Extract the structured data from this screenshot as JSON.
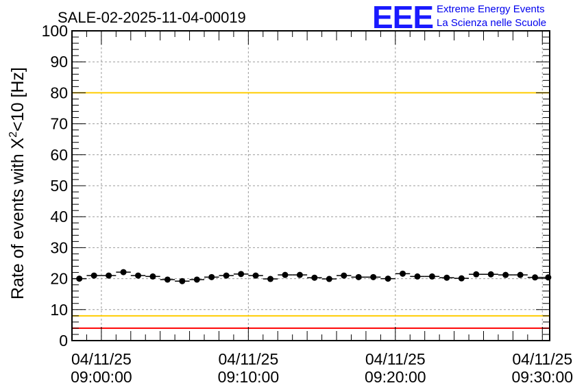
{
  "title": "SALE-02-2025-11-04-00019",
  "logo": {
    "mark": "EEE",
    "line1": "Extreme Energy Events",
    "line2": "La Scienza nelle Scuole",
    "color": "#1a1aff"
  },
  "chart_data": {
    "type": "scatter",
    "title": "SALE-02-2025-11-04-00019",
    "ylabel_prefix": "Rate of events with X",
    "ylabel_sup": "2",
    "ylabel_suffix": "<10 [Hz]",
    "xlabel": "",
    "ylim": [
      0,
      100
    ],
    "xlim_minutes": [
      -2,
      30.5
    ],
    "grid": true,
    "error_bars": "horizontal",
    "y_ticks": [
      "0",
      "10",
      "20",
      "30",
      "40",
      "50",
      "60",
      "70",
      "80",
      "90",
      "100"
    ],
    "x_ticks": [
      {
        "minute": 0,
        "date": "04/11/25",
        "time": "09:00:00"
      },
      {
        "minute": 10,
        "date": "04/11/25",
        "time": "09:10:00"
      },
      {
        "minute": 20,
        "date": "04/11/25",
        "time": "09:20:00"
      },
      {
        "minute": 30,
        "date": "04/11/25",
        "time": "09:30:00"
      }
    ],
    "reference_lines": [
      {
        "y": 100,
        "color": "#ff0000"
      },
      {
        "y": 80,
        "color": "#ffcc00"
      },
      {
        "y": 8,
        "color": "#ffcc00"
      },
      {
        "y": 4,
        "color": "#ff0000"
      }
    ],
    "series": [
      {
        "color": "#000000",
        "bin_width_minutes": 1,
        "x_minutes": [
          -1.5,
          -0.5,
          0.5,
          1.5,
          2.5,
          3.5,
          4.5,
          5.5,
          6.5,
          7.5,
          8.5,
          9.5,
          10.5,
          11.5,
          12.5,
          13.5,
          14.5,
          15.5,
          16.5,
          17.5,
          18.5,
          19.5,
          20.5,
          21.5,
          22.5,
          23.5,
          24.5,
          25.5,
          26.5,
          27.5,
          28.5,
          29.5,
          30.4
        ],
        "values": [
          20.0,
          21.0,
          21.0,
          22.1,
          21.0,
          20.7,
          19.7,
          19.2,
          19.7,
          20.5,
          21.0,
          21.5,
          21.0,
          19.9,
          21.2,
          21.2,
          20.3,
          19.9,
          21.0,
          20.5,
          20.5,
          20.0,
          21.6,
          20.7,
          20.7,
          20.3,
          20.1,
          21.4,
          21.4,
          21.2,
          21.2,
          20.4,
          20.4
        ]
      }
    ]
  }
}
